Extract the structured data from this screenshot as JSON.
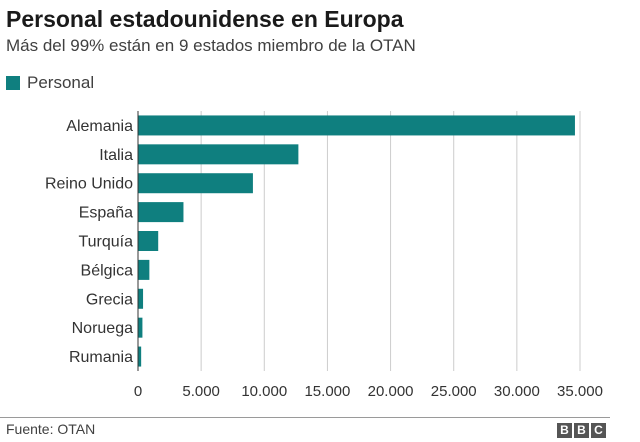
{
  "title": "Personal estadounidense en Europa",
  "subtitle": "Más del 99% están en 9 estados miembro de la OTAN",
  "source": "Fuente: OTAN",
  "logo_text": "BBC",
  "colors": {
    "bar": "#0f7f7f",
    "axis": "#333333",
    "grid": "#cccccc"
  },
  "chart_data": {
    "type": "bar",
    "orientation": "horizontal",
    "title": "Personal estadounidense en Europa",
    "subtitle": "Más del 99% están en 9 estados miembro de la OTAN",
    "legend": {
      "position": "top-left"
    },
    "categories": [
      "Alemania",
      "Italia",
      "Reino Unido",
      "España",
      "Turquía",
      "Bélgica",
      "Grecia",
      "Noruega",
      "Rumania"
    ],
    "series": [
      {
        "name": "Personal",
        "values": [
          34600,
          12700,
          9100,
          3600,
          1600,
          900,
          400,
          350,
          250
        ]
      }
    ],
    "xlim": [
      0,
      35000
    ],
    "xticks": [
      0,
      5000,
      10000,
      15000,
      20000,
      25000,
      30000,
      35000
    ],
    "xtick_labels": [
      "0",
      "5.000",
      "10.000",
      "15.000",
      "20.000",
      "25.000",
      "30.000",
      "35.000"
    ],
    "grid": true
  }
}
